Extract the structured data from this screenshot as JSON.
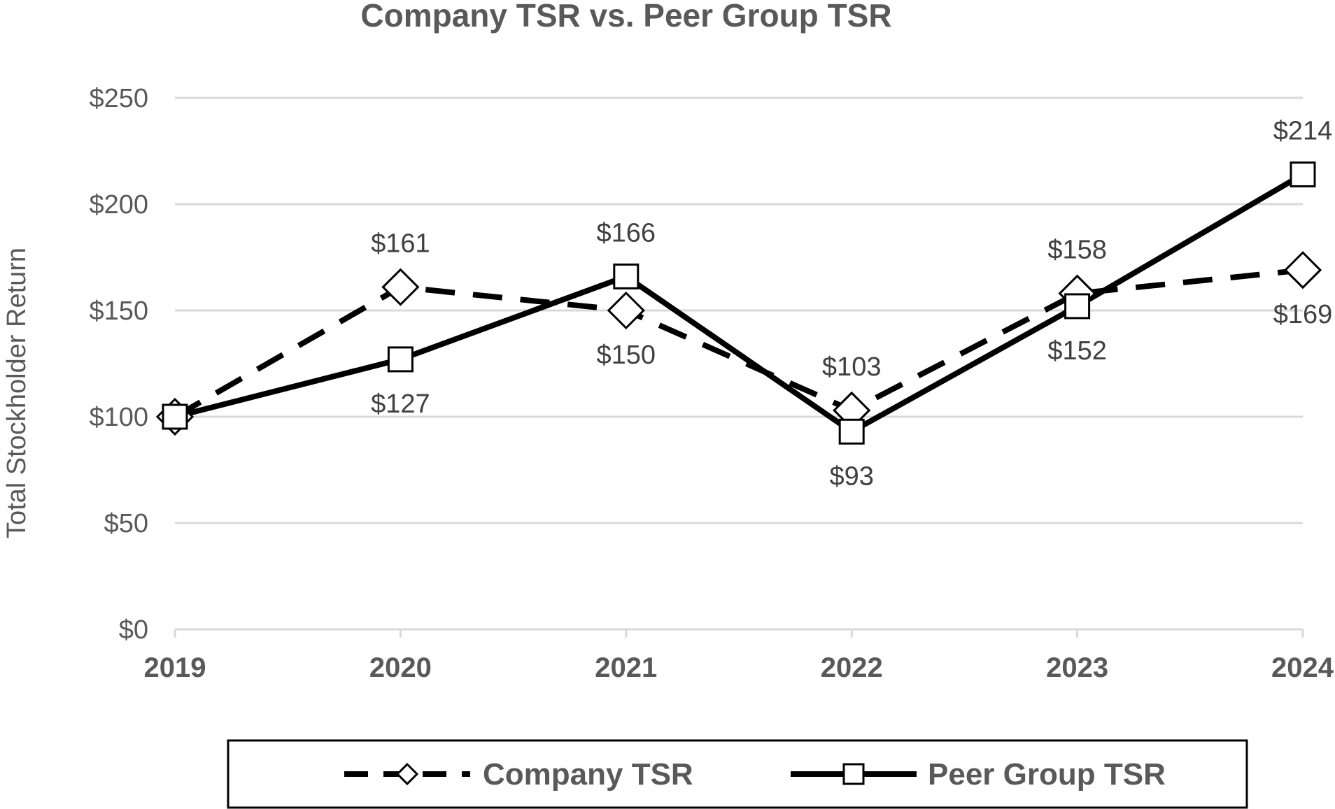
{
  "chart_data": {
    "type": "line",
    "title": "Company TSR vs. Peer Group TSR",
    "ylabel": "Total Stockholder Return",
    "xlabel": "",
    "categories": [
      "2019",
      "2020",
      "2021",
      "2022",
      "2023",
      "2024"
    ],
    "ylim": [
      0,
      250
    ],
    "yticks": [
      0,
      50,
      100,
      150,
      200,
      250
    ],
    "ytick_labels": [
      "$0",
      "$50",
      "$100",
      "$150",
      "$200",
      "$250"
    ],
    "grid": true,
    "legend_position": "bottom",
    "series": [
      {
        "name": "Company TSR",
        "values": [
          100,
          161,
          150,
          103,
          158,
          169
        ],
        "labels": [
          "",
          "$161",
          "$150",
          "$103",
          "$158",
          "$169"
        ],
        "label_pos": [
          "",
          "above",
          "below",
          "above",
          "above",
          "below"
        ],
        "line_style": "dashed",
        "marker": "diamond",
        "color": "#000000"
      },
      {
        "name": "Peer Group TSR",
        "values": [
          100,
          127,
          166,
          93,
          152,
          214
        ],
        "labels": [
          "",
          "$127",
          "$166",
          "$93",
          "$152",
          "$214"
        ],
        "label_pos": [
          "",
          "below",
          "above",
          "below",
          "below",
          "above"
        ],
        "line_style": "solid",
        "marker": "square",
        "color": "#000000"
      }
    ]
  }
}
